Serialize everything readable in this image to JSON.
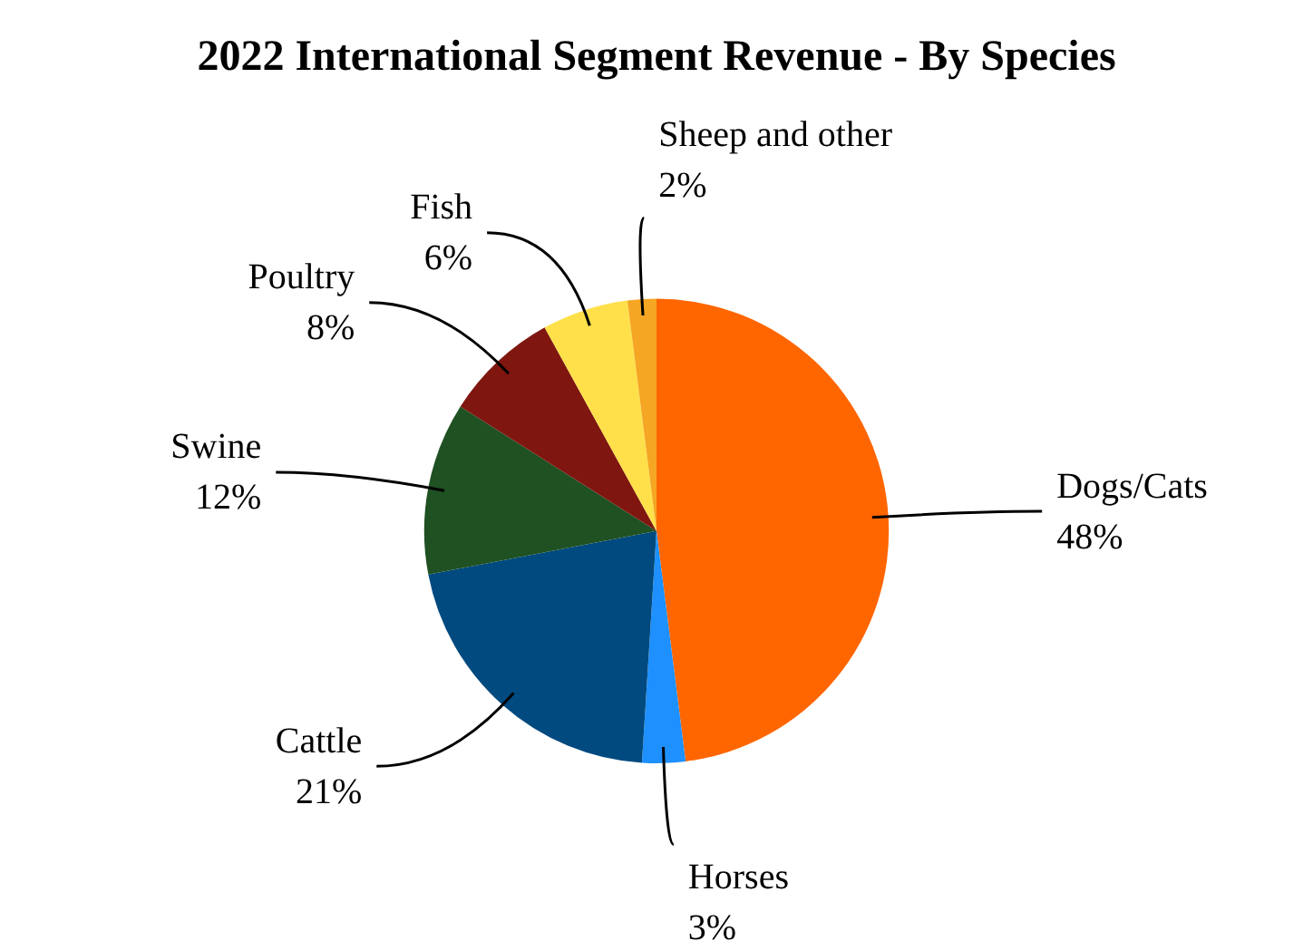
{
  "chart_data": {
    "type": "pie",
    "title": "2022 International Segment Revenue - By Species",
    "categories": [
      "Dogs/Cats",
      "Horses",
      "Cattle",
      "Swine",
      "Poultry",
      "Fish",
      "Sheep and other"
    ],
    "values": [
      48,
      3,
      21,
      12,
      8,
      6,
      2
    ],
    "value_labels": [
      "48%",
      "3%",
      "21%",
      "12%",
      "8%",
      "6%",
      "2%"
    ],
    "colors": [
      "#ff6600",
      "#1e90ff",
      "#004a7f",
      "#1f5123",
      "#7f1710",
      "#ffe04a",
      "#f5a623"
    ],
    "legend": false
  }
}
